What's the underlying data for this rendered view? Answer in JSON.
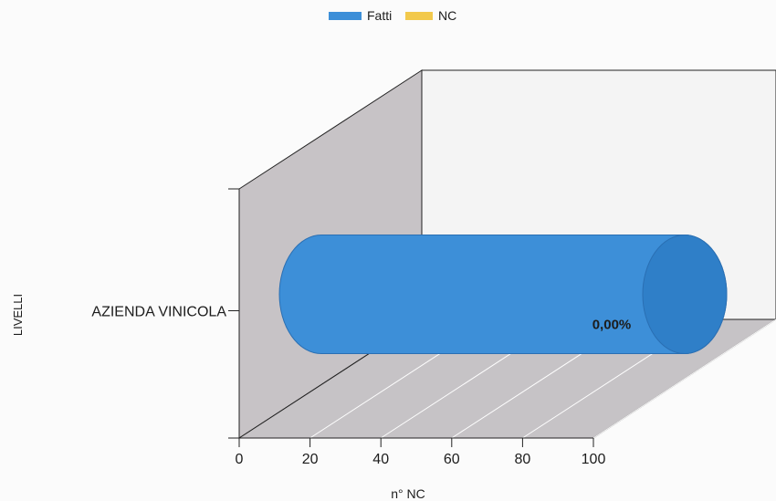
{
  "chart_data": {
    "type": "bar",
    "orientation": "horizontal",
    "render_3d": true,
    "categories": [
      "AZIENDA VINICOLA"
    ],
    "series": [
      {
        "name": "Fatti",
        "values": [
          100
        ],
        "color": "#3d8fd8",
        "data_label": "0,00%"
      },
      {
        "name": "NC",
        "values": [
          0
        ],
        "color": "#f2c94c"
      }
    ],
    "x_axis": {
      "label": "n° NC",
      "range": [
        0,
        100
      ],
      "ticks": [
        0,
        20,
        40,
        60,
        80,
        100
      ]
    },
    "y_axis": {
      "label": "LIVELLI"
    },
    "legend": {
      "position": "top-center",
      "items": [
        "Fatti",
        "NC"
      ]
    },
    "grid": true,
    "colors": {
      "wall_side": "#c7c3c6",
      "wall_back": "#f4f4f4",
      "floor": "#c6c3c6",
      "bar": "#3d8fd8",
      "bar_cap": "#2f7fc8"
    }
  }
}
